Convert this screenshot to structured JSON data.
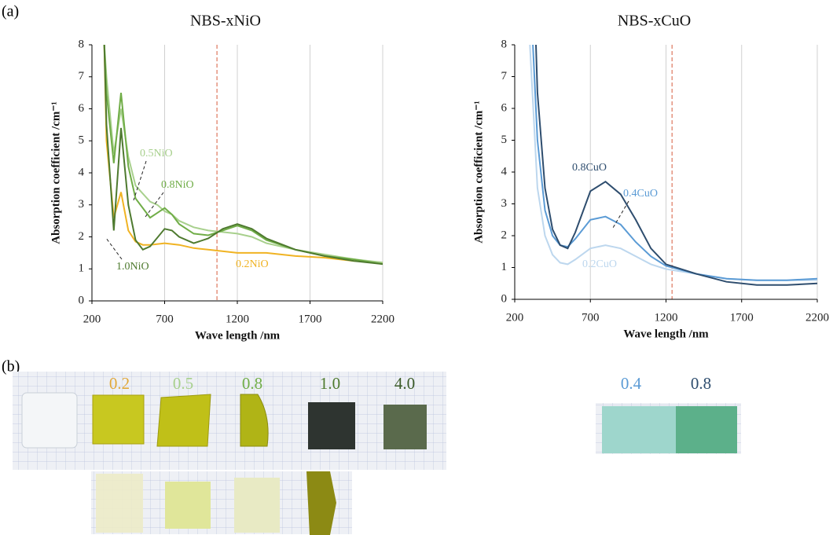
{
  "labels": {
    "a": "(a)",
    "b": "(b)"
  },
  "chart_data": [
    {
      "type": "line",
      "title": "NBS-xNiO",
      "xlabel": "Wave length /nm",
      "ylabel": "Absorption coefficient /cm⁻¹",
      "xlim": [
        200,
        2200
      ],
      "xticks": [
        200,
        700,
        1200,
        1700,
        2200
      ],
      "ylim": [
        0,
        8
      ],
      "yticks": [
        0,
        1,
        2,
        3,
        4,
        5,
        6,
        7,
        8
      ],
      "grid": true,
      "vline": 1060,
      "series": [
        {
          "name": "0.2NiO",
          "color": "#f0b323",
          "x": [
            285,
            300,
            350,
            400,
            450,
            500,
            550,
            600,
            700,
            800,
            900,
            1000,
            1200,
            1400,
            1600,
            1800,
            2000,
            2200
          ],
          "values": [
            8,
            5,
            2.6,
            3.4,
            2.2,
            1.85,
            1.75,
            1.75,
            1.8,
            1.75,
            1.65,
            1.6,
            1.5,
            1.5,
            1.4,
            1.35,
            1.25,
            1.2
          ]
        },
        {
          "name": "0.5NiO",
          "color": "#a8d08d",
          "x": [
            285,
            300,
            350,
            400,
            450,
            500,
            600,
            650,
            700,
            750,
            800,
            900,
            1000,
            1100,
            1200,
            1300,
            1400,
            1600,
            1800,
            2000,
            2200
          ],
          "values": [
            8,
            7,
            4.6,
            6,
            4.5,
            3.6,
            3.1,
            3,
            2.8,
            2.7,
            2.5,
            2.3,
            2.2,
            2.15,
            2.1,
            2,
            1.8,
            1.6,
            1.45,
            1.3,
            1.2
          ]
        },
        {
          "name": "0.8NiO",
          "color": "#70ad47",
          "x": [
            285,
            300,
            350,
            400,
            450,
            500,
            600,
            650,
            700,
            750,
            800,
            900,
            1000,
            1100,
            1200,
            1300,
            1400,
            1600,
            1800,
            2000,
            2200
          ],
          "values": [
            8,
            6.5,
            4.3,
            6.5,
            4.2,
            3.2,
            2.6,
            2.75,
            2.9,
            2.7,
            2.4,
            2.1,
            2.05,
            2.2,
            2.35,
            2.2,
            1.9,
            1.6,
            1.4,
            1.3,
            1.15
          ]
        },
        {
          "name": "1.0NiO",
          "color": "#4e7a2f",
          "x": [
            285,
            300,
            350,
            400,
            450,
            500,
            550,
            600,
            700,
            750,
            800,
            900,
            1000,
            1100,
            1200,
            1300,
            1400,
            1600,
            1800,
            2000,
            2200
          ],
          "values": [
            8,
            5.5,
            2.2,
            5.4,
            3,
            1.9,
            1.6,
            1.7,
            2.25,
            2.2,
            2,
            1.8,
            1.95,
            2.25,
            2.4,
            2.25,
            1.95,
            1.6,
            1.4,
            1.25,
            1.15
          ]
        }
      ]
    },
    {
      "type": "line",
      "title": "NBS-xCuO",
      "xlabel": "Wave length /nm",
      "ylabel": "Absorption coefficient /cm⁻¹",
      "xlim": [
        200,
        2200
      ],
      "xticks": [
        200,
        700,
        1200,
        1700,
        2200
      ],
      "ylim": [
        0,
        8
      ],
      "yticks": [
        0,
        1,
        2,
        3,
        4,
        5,
        6,
        7,
        8
      ],
      "grid": true,
      "vline": 1240,
      "series": [
        {
          "name": "0.2CuO",
          "color": "#bdd7ee",
          "x": [
            300,
            350,
            400,
            450,
            500,
            550,
            600,
            700,
            800,
            900,
            1000,
            1100,
            1200,
            1400,
            1600,
            1800,
            2000,
            2200
          ],
          "values": [
            8,
            3.5,
            2,
            1.4,
            1.15,
            1.1,
            1.25,
            1.6,
            1.7,
            1.6,
            1.35,
            1.1,
            0.95,
            0.8,
            0.65,
            0.6,
            0.6,
            0.6
          ]
        },
        {
          "name": "0.4CuO",
          "color": "#5b9bd5",
          "x": [
            320,
            350,
            400,
            450,
            500,
            550,
            600,
            700,
            800,
            900,
            1000,
            1100,
            1200,
            1400,
            1600,
            1800,
            2000,
            2200
          ],
          "values": [
            8,
            5,
            2.8,
            2,
            1.7,
            1.65,
            1.9,
            2.5,
            2.6,
            2.35,
            1.8,
            1.35,
            1.05,
            0.8,
            0.65,
            0.6,
            0.6,
            0.65
          ]
        },
        {
          "name": "0.8CuO",
          "color": "#2e4d6e",
          "x": [
            340,
            350,
            400,
            450,
            500,
            550,
            600,
            700,
            800,
            900,
            1000,
            1100,
            1200,
            1400,
            1600,
            1800,
            2000,
            2200
          ],
          "values": [
            8,
            6.5,
            3.5,
            2.2,
            1.7,
            1.6,
            2.1,
            3.4,
            3.7,
            3.3,
            2.5,
            1.6,
            1.1,
            0.8,
            0.55,
            0.45,
            0.45,
            0.5
          ]
        }
      ]
    }
  ],
  "photos": {
    "nio": [
      "0.2",
      "0.5",
      "0.8",
      "1.0",
      "4.0"
    ],
    "cuo": [
      "0.4",
      "0.8"
    ]
  }
}
